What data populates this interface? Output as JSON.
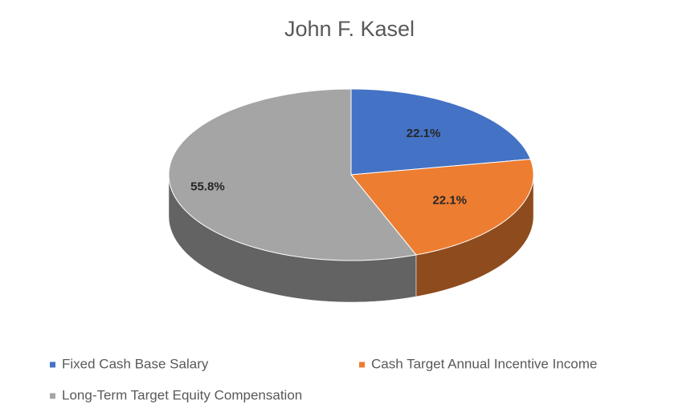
{
  "chart_data": {
    "type": "pie",
    "title": "John F. Kasel",
    "categories": [
      "Fixed Cash Base Salary",
      "Cash Target Annual Incentive Income",
      "Long-Term Target Equity Compensation"
    ],
    "values": [
      22.1,
      22.1,
      55.8
    ],
    "value_labels": [
      "22.1%",
      "22.1%",
      "55.8%"
    ],
    "colors": [
      "#4472c4",
      "#ed7d31",
      "#a5a5a5"
    ],
    "legend": "bottom"
  }
}
